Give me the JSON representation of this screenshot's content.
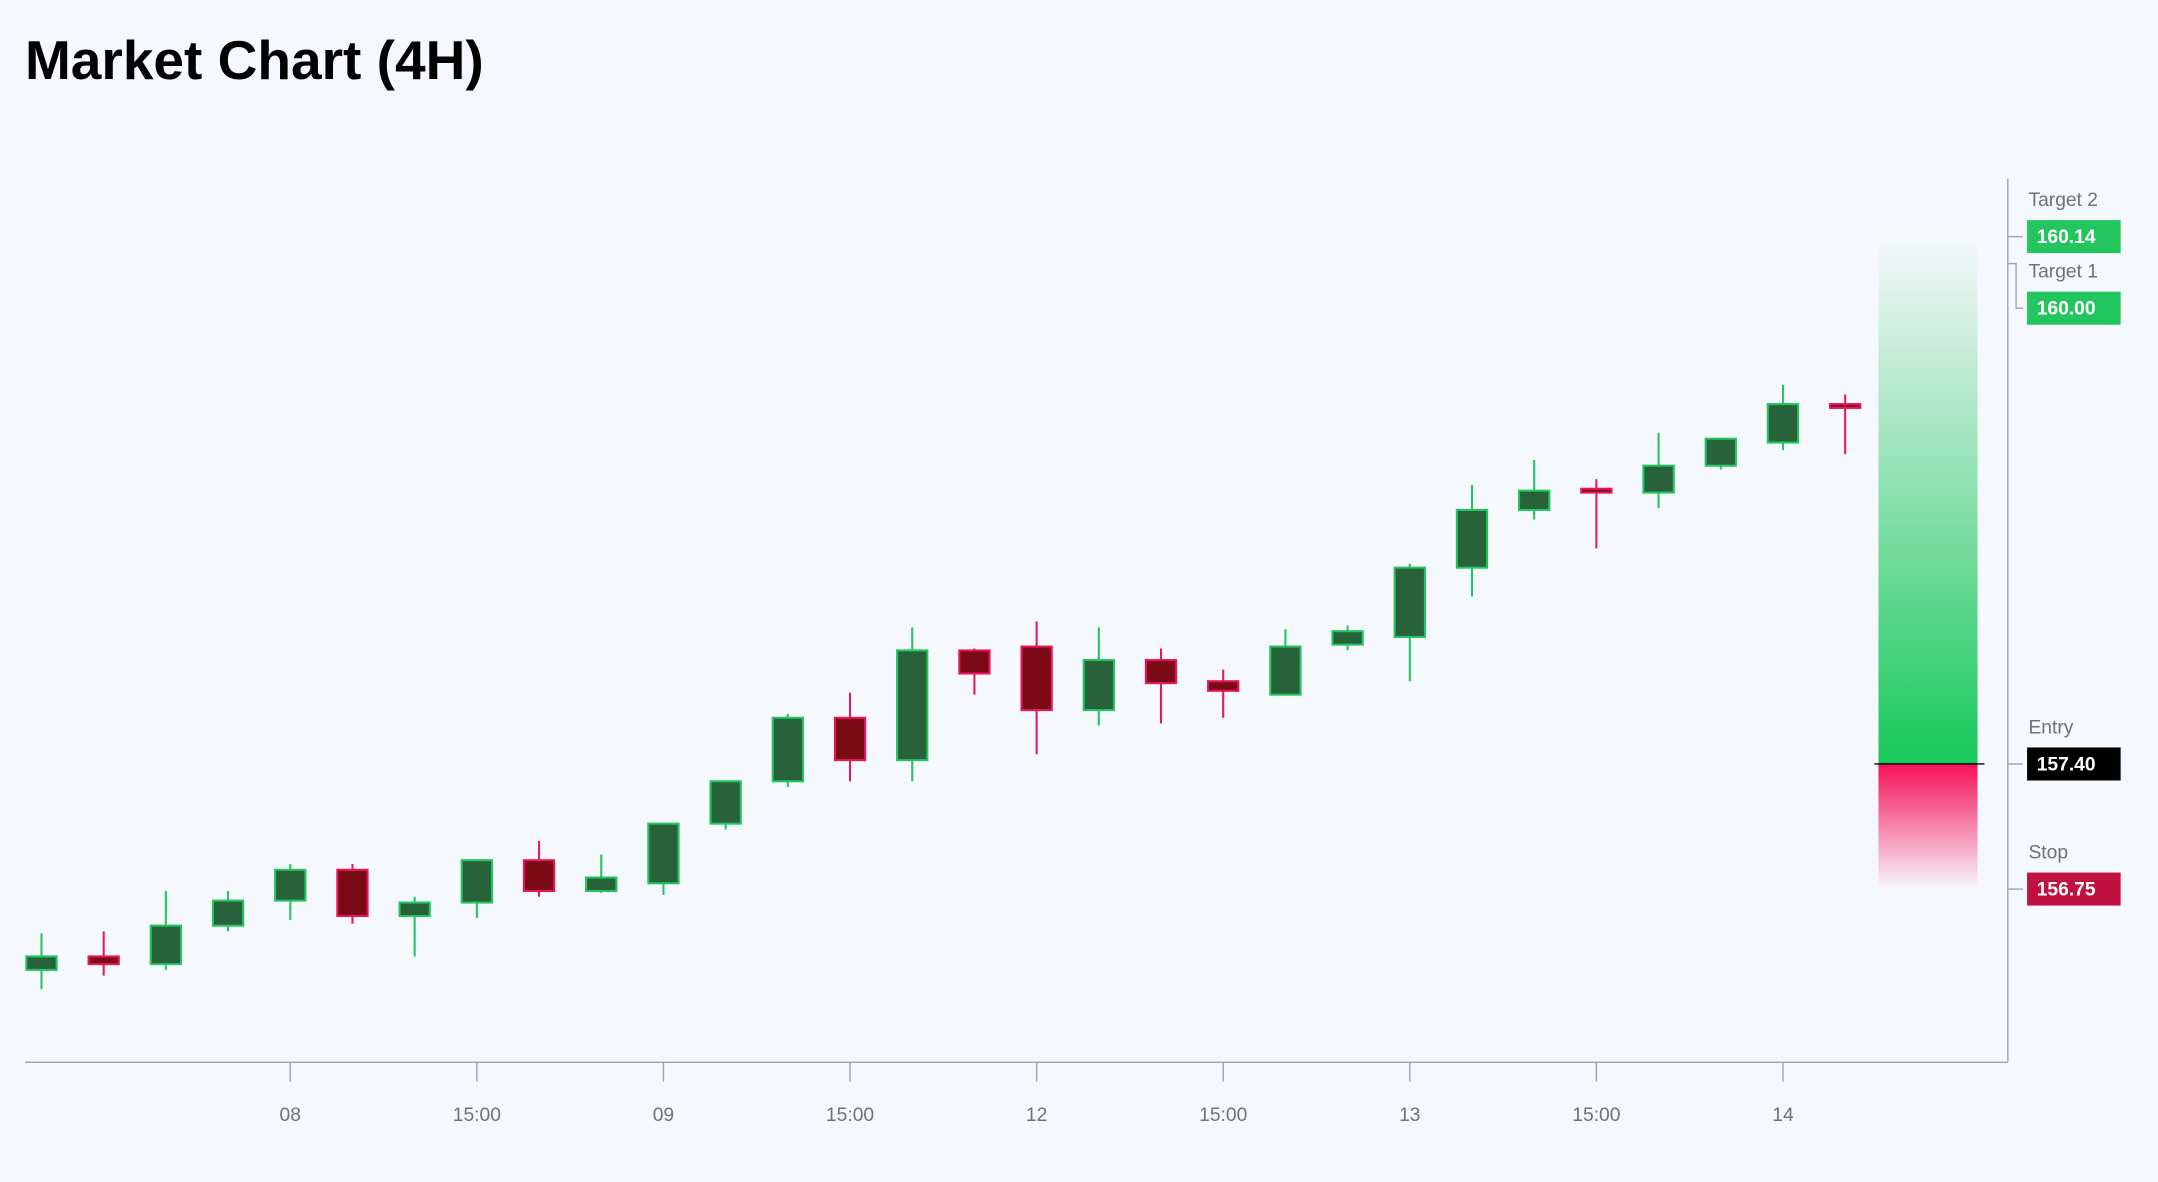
{
  "chart_data": {
    "type": "candlestick",
    "title": "Market Chart (4H)",
    "categories": [
      null,
      null,
      null,
      null,
      "08",
      null,
      null,
      "15:00",
      null,
      null,
      "09",
      null,
      null,
      "15:00",
      null,
      null,
      "12",
      null,
      null,
      "15:00",
      null,
      null,
      "13",
      null,
      null,
      "15:00",
      null,
      null,
      "14",
      null
    ],
    "open": [
      156.33,
      156.4,
      156.36,
      156.56,
      156.69,
      156.85,
      156.61,
      156.68,
      156.9,
      156.74,
      156.78,
      157.09,
      157.31,
      157.64,
      157.42,
      157.99,
      158.01,
      157.68,
      157.94,
      157.83,
      157.76,
      158.02,
      158.06,
      158.42,
      158.72,
      158.83,
      158.81,
      158.95,
      159.07,
      159.27
    ],
    "high": [
      156.52,
      156.53,
      156.74,
      156.74,
      156.88,
      156.88,
      156.71,
      156.9,
      157.0,
      156.93,
      157.09,
      157.31,
      157.66,
      157.77,
      158.11,
      158.0,
      158.14,
      158.11,
      158.0,
      157.89,
      158.1,
      158.12,
      158.44,
      158.85,
      158.98,
      158.88,
      159.12,
      159.09,
      159.37,
      159.32
    ],
    "low": [
      156.23,
      156.3,
      156.33,
      156.53,
      156.59,
      156.57,
      156.4,
      156.6,
      156.71,
      156.73,
      156.72,
      157.06,
      157.28,
      157.31,
      157.31,
      157.76,
      157.45,
      157.6,
      157.61,
      157.64,
      157.76,
      157.99,
      157.83,
      158.27,
      158.67,
      158.52,
      158.73,
      158.93,
      159.03,
      159.01
    ],
    "close": [
      156.4,
      156.36,
      156.56,
      156.69,
      156.85,
      156.61,
      156.68,
      156.9,
      156.74,
      156.81,
      157.09,
      157.31,
      157.64,
      157.42,
      157.99,
      157.87,
      157.68,
      157.94,
      157.82,
      157.78,
      158.01,
      158.09,
      158.42,
      158.72,
      158.82,
      158.81,
      158.95,
      159.09,
      159.27,
      159.25
    ],
    "up_color": "#22c55e",
    "down_color": "#e8175d",
    "ylim": [
      155.85,
      160.44
    ],
    "levels": {
      "names": [
        "Target 2",
        "Target 1",
        "Entry",
        "Stop"
      ],
      "values": [
        160.14,
        160.0,
        157.4,
        156.75
      ],
      "value_labels": [
        "160.14",
        "160.00",
        "157.40",
        "156.75"
      ],
      "colors": [
        "#22c55e",
        "#22c55e",
        "#000000",
        "#c0103f"
      ]
    }
  }
}
